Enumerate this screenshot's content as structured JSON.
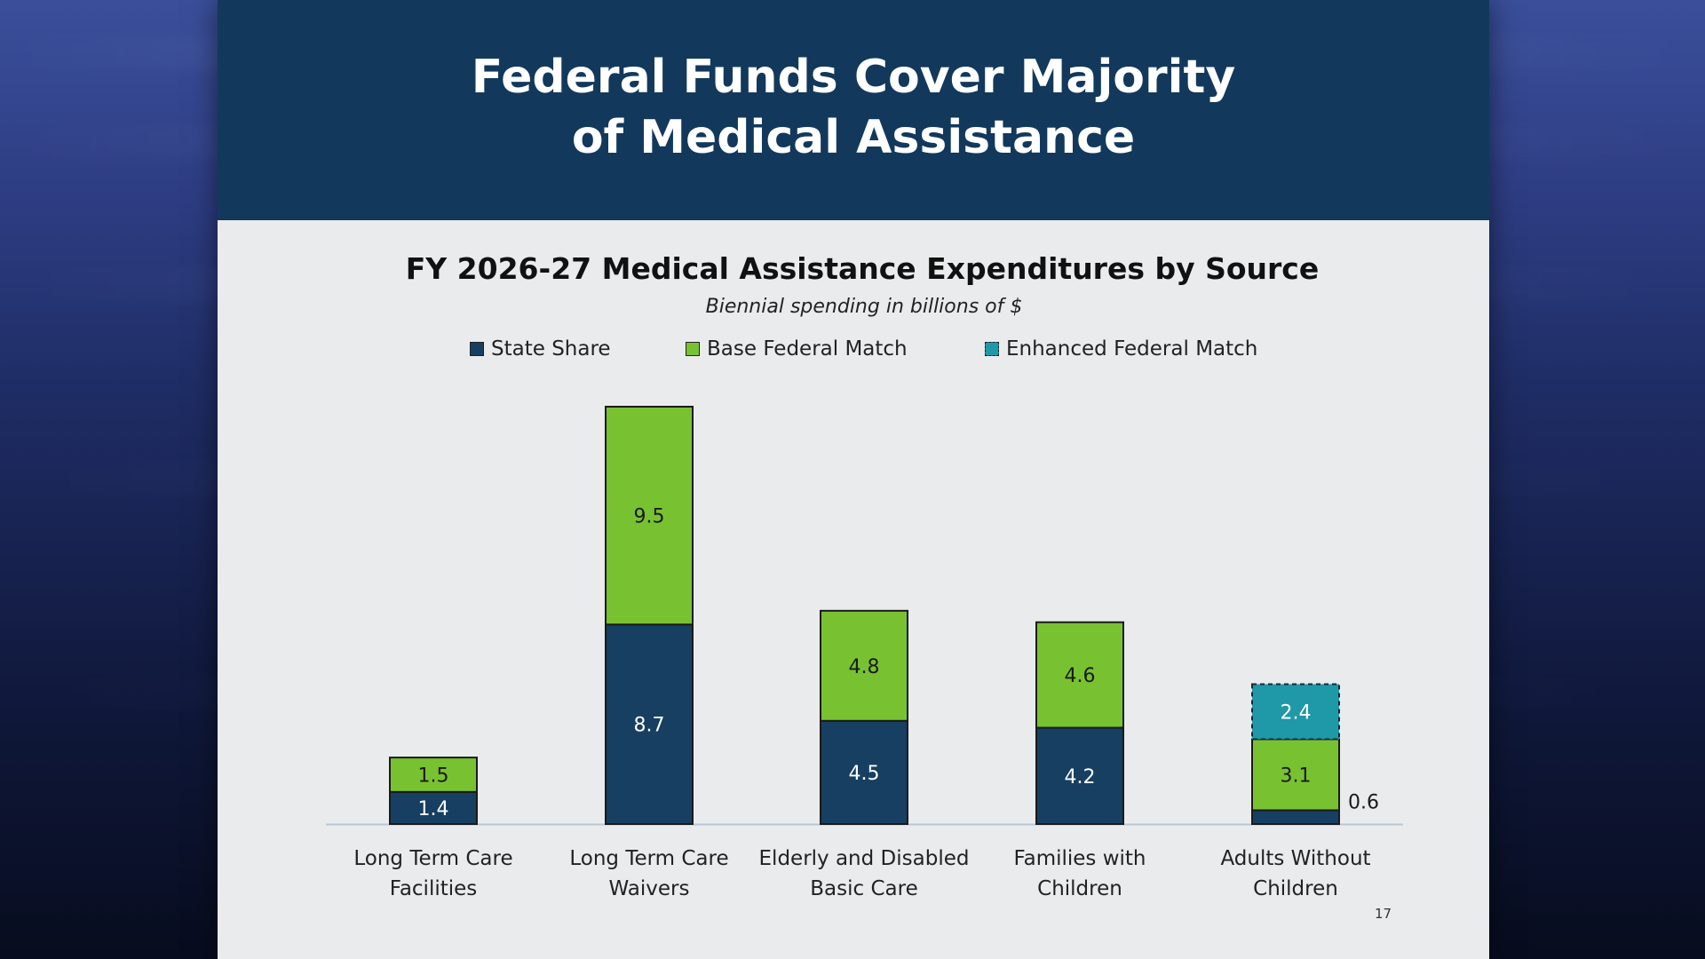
{
  "slide": {
    "title_line1": "Federal Funds Cover Majority",
    "title_line2": "of Medical Assistance",
    "page_number": "17"
  },
  "colors": {
    "header_bg": "#12395c",
    "state_share": "#163f62",
    "base_federal": "#78c232",
    "enhanced_federal": "#1f98a8",
    "slide_bg": "#e9ebed"
  },
  "chart_data": {
    "type": "bar",
    "stacked": true,
    "title": "FY 2026-27 Medical Assistance Expenditures by Source",
    "subtitle": "Biennial spending in billions of $",
    "categories": [
      [
        "Long Term Care",
        "Facilities"
      ],
      [
        "Long Term Care",
        "Waivers"
      ],
      [
        "Elderly and Disabled",
        "Basic Care"
      ],
      [
        "Families with",
        "Children"
      ],
      [
        "Adults Without",
        "Children"
      ]
    ],
    "series": [
      {
        "name": "State Share",
        "values": [
          1.4,
          8.7,
          4.5,
          4.2,
          0.6
        ],
        "labels": [
          "1.4",
          "8.7",
          "4.5",
          "4.2",
          "0.6"
        ]
      },
      {
        "name": "Base Federal Match",
        "values": [
          1.5,
          9.5,
          4.8,
          4.6,
          3.1
        ],
        "labels": [
          "1.5",
          "9.5",
          "4.8",
          "4.6",
          "3.1"
        ]
      },
      {
        "name": "Enhanced Federal Match",
        "values": [
          0,
          0,
          0,
          0,
          2.4
        ],
        "labels": [
          "",
          "",
          "",
          "",
          "2.4"
        ]
      }
    ],
    "ylim": [
      0,
      18.2
    ],
    "grid": false,
    "legend_position": "top"
  }
}
